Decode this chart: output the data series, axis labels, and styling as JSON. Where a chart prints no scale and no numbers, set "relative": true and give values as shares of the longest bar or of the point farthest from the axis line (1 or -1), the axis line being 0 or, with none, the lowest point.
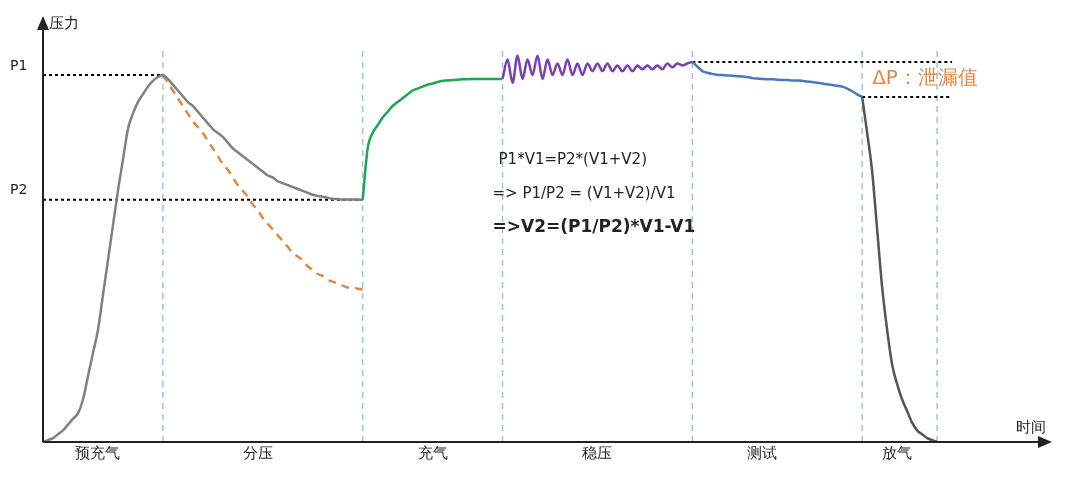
{
  "chart_data": {
    "type": "line",
    "relative": true,
    "ylabel": "压力",
    "xlabel": "时间",
    "categories": [
      null,
      null,
      null,
      null,
      null,
      null,
      null,
      null,
      null,
      null,
      null,
      "预充气",
      null,
      null,
      null,
      null,
      null,
      null,
      null,
      null,
      null,
      null,
      null,
      null,
      null,
      null,
      null,
      null,
      null,
      null,
      null,
      null,
      null,
      null,
      null,
      null,
      null,
      null,
      null,
      null,
      null,
      null,
      null,
      "分压",
      null,
      null,
      null,
      null,
      null,
      null,
      null,
      null,
      null,
      null,
      null,
      null,
      null,
      null,
      null,
      null,
      null,
      null,
      null,
      null,
      null,
      null,
      null,
      null,
      null,
      null,
      null,
      null,
      null,
      null,
      null,
      null,
      null,
      null,
      "充气",
      null,
      null,
      null,
      null,
      null,
      null,
      null,
      null,
      null,
      null,
      null,
      null,
      null,
      null,
      null,
      null,
      null,
      null,
      null,
      null,
      null,
      null,
      null,
      null,
      null,
      null,
      null,
      null,
      null,
      null,
      null,
      null,
      "稳压",
      null,
      null,
      null,
      null,
      null,
      null,
      null,
      null,
      null,
      null,
      null,
      null,
      null,
      null,
      null,
      null,
      null,
      null,
      null,
      null,
      null,
      null,
      null,
      null,
      null,
      null,
      null,
      null,
      null,
      null,
      null,
      null,
      "测试",
      null,
      null,
      null,
      null,
      null,
      null,
      null,
      null,
      null,
      null,
      null,
      null,
      null,
      null,
      null,
      null,
      null,
      null,
      null,
      null,
      null,
      null,
      null,
      null,
      null,
      null,
      "放气",
      null,
      null,
      null,
      null,
      null,
      null,
      null,
      null,
      null,
      null,
      null,
      null,
      null,
      null,
      null,
      null,
      null,
      null,
      null,
      null,
      null,
      null,
      null,
      null,
      null,
      null,
      null,
      null,
      null
    ],
    "grid": false,
    "legend": false,
    "marker": "none",
    "line_style": "solid",
    "series": [
      {
        "color": "#808080",
        "values": [
          0,
          0.005,
          0.01,
          0.02,
          0.03,
          0.045,
          0.06,
          0.074,
          0.11,
          0.17,
          0.23,
          0.29,
          0.38,
          0.47,
          0.56,
          0.65,
          0.73,
          0.81,
          0.85,
          0.88,
          0.9,
          0.92,
          0.935,
          0.945,
          0.95,
          0.94,
          0.925,
          0.91,
          0.895,
          0.88,
          0.87,
          0.855,
          0.84,
          0.825,
          0.81,
          0.8,
          0.79,
          0.775,
          0.76,
          0.75,
          0.74,
          0.73,
          0.72,
          0.71,
          0.7,
          0.69,
          0.685,
          0.675,
          0.67,
          0.665,
          0.66,
          0.655,
          0.65,
          0.645,
          0.64,
          0.637,
          0.635,
          0.632,
          0.63,
          0.629,
          0.628,
          0.628,
          0.628,
          0.628,
          0.627,
          null,
          null,
          null,
          null,
          null,
          null,
          null,
          null,
          null,
          null,
          null,
          null,
          null,
          null,
          null,
          null,
          null,
          null,
          null,
          null,
          null,
          null,
          null,
          null,
          null,
          null,
          null,
          null,
          null,
          null,
          null,
          null,
          null,
          null,
          null,
          null,
          null,
          null,
          null,
          null,
          null,
          null,
          null,
          null,
          null,
          null,
          null,
          null,
          null,
          null,
          null,
          null,
          null,
          null,
          null,
          null,
          null,
          null,
          null,
          null,
          null,
          null,
          null,
          null,
          null,
          null,
          null,
          null,
          null,
          null,
          null,
          null,
          null,
          null,
          null,
          null,
          null,
          null,
          null,
          null,
          null,
          null,
          null,
          null,
          null,
          null,
          null,
          null,
          null,
          null,
          null,
          null,
          null,
          null,
          null,
          null,
          null,
          null,
          null,
          null,
          null,
          null,
          null,
          null,
          null,
          null,
          null,
          null,
          null,
          null,
          null,
          null,
          null,
          null,
          null,
          null,
          null,
          null,
          null,
          null,
          null,
          null,
          null,
          null,
          null,
          null,
          null,
          null,
          null,
          null,
          null,
          null,
          null,
          null,
          null,
          null
        ]
      },
      {
        "color": "#e08a45",
        "line_style": "dashed",
        "values": [
          null,
          null,
          null,
          null,
          null,
          null,
          null,
          null,
          null,
          null,
          null,
          null,
          null,
          null,
          null,
          null,
          null,
          null,
          null,
          null,
          null,
          null,
          null,
          null,
          0.95,
          0.93,
          0.91,
          0.89,
          0.87,
          0.85,
          0.83,
          0.815,
          0.8,
          0.78,
          0.76,
          0.74,
          0.72,
          0.705,
          0.685,
          0.665,
          0.65,
          0.635,
          0.615,
          0.6,
          0.58,
          0.565,
          0.55,
          0.535,
          0.52,
          0.505,
          0.49,
          0.48,
          0.47,
          0.455,
          0.445,
          0.435,
          0.43,
          0.42,
          0.415,
          0.41,
          0.405,
          0.4,
          0.4,
          0.397,
          0.395,
          null,
          null,
          null,
          null,
          null,
          null,
          null,
          null,
          null,
          null,
          null,
          null,
          null,
          null,
          null,
          null,
          null,
          null,
          null,
          null,
          null,
          null,
          null,
          null,
          null,
          null,
          null,
          null,
          null,
          null,
          null,
          null,
          null,
          null,
          null,
          null,
          null,
          null,
          null,
          null,
          null,
          null,
          null,
          null,
          null,
          null,
          null,
          null,
          null,
          null,
          null,
          null,
          null,
          null,
          null,
          null,
          null,
          null,
          null,
          null,
          null,
          null,
          null,
          null,
          null,
          null,
          null,
          null,
          null,
          null,
          null,
          null,
          null,
          null,
          null,
          null,
          null,
          null,
          null,
          null,
          null,
          null,
          null,
          null,
          null,
          null,
          null,
          null,
          null,
          null,
          null,
          null,
          null,
          null,
          null,
          null,
          null,
          null,
          null,
          null,
          null,
          null,
          null,
          null,
          null,
          null,
          null,
          null,
          null,
          null,
          null,
          null,
          null,
          null,
          null,
          null,
          null,
          null,
          null,
          null,
          null,
          null,
          null,
          null,
          null,
          null,
          null,
          null,
          null,
          null,
          null,
          null,
          null,
          null,
          null,
          null
        ]
      },
      {
        "color": "#1ea650",
        "values": [
          null,
          null,
          null,
          null,
          null,
          null,
          null,
          null,
          null,
          null,
          null,
          null,
          null,
          null,
          null,
          null,
          null,
          null,
          null,
          null,
          null,
          null,
          null,
          null,
          null,
          null,
          null,
          null,
          null,
          null,
          null,
          null,
          null,
          null,
          null,
          null,
          null,
          null,
          null,
          null,
          null,
          null,
          null,
          null,
          null,
          null,
          null,
          null,
          null,
          null,
          null,
          null,
          null,
          null,
          null,
          null,
          null,
          null,
          null,
          null,
          null,
          null,
          null,
          null,
          0.627,
          0.76,
          0.8,
          0.82,
          0.84,
          0.855,
          0.87,
          0.88,
          0.89,
          0.9,
          0.91,
          0.915,
          0.92,
          0.925,
          0.928,
          0.932,
          0.935,
          0.936,
          0.937,
          0.938,
          0.939,
          0.939,
          0.94,
          0.94,
          0.94,
          0.94,
          0.94,
          0.94,
          0.94,
          null,
          null,
          null,
          null,
          null,
          null,
          null,
          null,
          null,
          null,
          null,
          null,
          null,
          null,
          null,
          null,
          null,
          null,
          null,
          null,
          null,
          null,
          null,
          null,
          null,
          null,
          null,
          null,
          null,
          null,
          null,
          null,
          null,
          null,
          null,
          null,
          null,
          null,
          null,
          null,
          null,
          null,
          null,
          null,
          null,
          null,
          null,
          null,
          null,
          null,
          null,
          null,
          null,
          null,
          null,
          null,
          null,
          null,
          null,
          null,
          null,
          null,
          null,
          null,
          null,
          null,
          null,
          null,
          null,
          null,
          null,
          null,
          null,
          null,
          null,
          null,
          null,
          null,
          null,
          null,
          null,
          null,
          null,
          null,
          null,
          null,
          null,
          null,
          null,
          null,
          null,
          null,
          null,
          null,
          null,
          null,
          null,
          null,
          null,
          null,
          null,
          null,
          null,
          null,
          null,
          null,
          null,
          null
        ]
      },
      {
        "color": "#7a3fb0",
        "values": [
          null,
          null,
          null,
          null,
          null,
          null,
          null,
          null,
          null,
          null,
          null,
          null,
          null,
          null,
          null,
          null,
          null,
          null,
          null,
          null,
          null,
          null,
          null,
          null,
          null,
          null,
          null,
          null,
          null,
          null,
          null,
          null,
          null,
          null,
          null,
          null,
          null,
          null,
          null,
          null,
          null,
          null,
          null,
          null,
          null,
          null,
          null,
          null,
          null,
          null,
          null,
          null,
          null,
          null,
          null,
          null,
          null,
          null,
          null,
          null,
          null,
          null,
          null,
          null,
          null,
          null,
          null,
          null,
          null,
          null,
          null,
          null,
          null,
          null,
          null,
          null,
          null,
          null,
          null,
          null,
          null,
          null,
          null,
          null,
          null,
          null,
          null,
          null,
          null,
          null,
          null,
          null,
          0.94,
          0.99,
          0.93,
          1.0,
          0.94,
          0.99,
          0.95,
          1.0,
          0.94,
          0.99,
          0.95,
          0.98,
          0.95,
          0.99,
          0.95,
          0.98,
          0.95,
          0.98,
          0.96,
          0.98,
          0.96,
          0.98,
          0.96,
          0.975,
          0.96,
          0.975,
          0.96,
          0.975,
          0.965,
          0.975,
          0.965,
          0.975,
          0.965,
          0.98,
          0.97,
          0.98,
          0.975,
          0.98,
          0.984,
          null,
          null,
          null,
          null,
          null,
          null,
          null,
          null,
          null,
          null,
          null,
          null,
          null,
          null,
          null,
          null,
          null,
          null,
          null,
          null,
          null,
          null,
          null,
          null,
          null,
          null,
          null,
          null,
          null,
          null,
          null,
          null,
          null,
          null,
          null,
          null,
          null,
          null,
          null,
          null,
          null,
          null,
          null,
          null,
          null,
          null,
          null,
          null,
          null,
          null,
          null,
          null,
          null,
          null,
          null,
          null,
          null,
          null,
          null,
          null,
          null,
          null,
          null,
          null,
          null,
          null,
          null,
          null,
          null,
          null
        ]
      },
      {
        "color": "#4a78c0",
        "values": [
          null,
          null,
          null,
          null,
          null,
          null,
          null,
          null,
          null,
          null,
          null,
          null,
          null,
          null,
          null,
          null,
          null,
          null,
          null,
          null,
          null,
          null,
          null,
          null,
          null,
          null,
          null,
          null,
          null,
          null,
          null,
          null,
          null,
          null,
          null,
          null,
          null,
          null,
          null,
          null,
          null,
          null,
          null,
          null,
          null,
          null,
          null,
          null,
          null,
          null,
          null,
          null,
          null,
          null,
          null,
          null,
          null,
          null,
          null,
          null,
          null,
          null,
          null,
          null,
          null,
          null,
          null,
          null,
          null,
          null,
          null,
          null,
          null,
          null,
          null,
          null,
          null,
          null,
          null,
          null,
          null,
          null,
          null,
          null,
          null,
          null,
          null,
          null,
          null,
          null,
          null,
          null,
          null,
          null,
          null,
          null,
          null,
          null,
          null,
          null,
          null,
          null,
          null,
          null,
          null,
          null,
          null,
          null,
          null,
          null,
          null,
          null,
          null,
          null,
          null,
          null,
          null,
          null,
          null,
          null,
          null,
          null,
          null,
          null,
          null,
          null,
          null,
          null,
          null,
          null,
          0.984,
          0.972,
          0.96,
          0.956,
          0.953,
          0.951,
          0.95,
          0.949,
          0.948,
          0.947,
          0.946,
          0.945,
          0.942,
          0.941,
          0.94,
          0.939,
          0.939,
          0.938,
          0.937,
          0.937,
          0.936,
          0.936,
          0.935,
          0.933,
          0.932,
          0.93,
          0.928,
          0.926,
          0.924,
          0.922,
          0.92,
          0.915,
          0.908,
          0.9,
          0.893,
          null,
          null,
          null,
          null,
          null,
          null,
          null,
          null,
          null,
          null,
          null,
          null,
          null,
          null,
          null,
          null,
          null,
          null,
          null,
          null,
          null,
          null,
          null,
          null,
          null,
          null,
          null,
          null,
          null,
          null,
          null,
          null,
          null,
          null,
          null,
          null
        ]
      },
      {
        "color": "#555555",
        "values": [
          null,
          null,
          null,
          null,
          null,
          null,
          null,
          null,
          null,
          null,
          null,
          null,
          null,
          null,
          null,
          null,
          null,
          null,
          null,
          null,
          null,
          null,
          null,
          null,
          null,
          null,
          null,
          null,
          null,
          null,
          null,
          null,
          null,
          null,
          null,
          null,
          null,
          null,
          null,
          null,
          null,
          null,
          null,
          null,
          null,
          null,
          null,
          null,
          null,
          null,
          null,
          null,
          null,
          null,
          null,
          null,
          null,
          null,
          null,
          null,
          null,
          null,
          null,
          null,
          null,
          null,
          null,
          null,
          null,
          null,
          null,
          null,
          null,
          null,
          null,
          null,
          null,
          null,
          null,
          null,
          null,
          null,
          null,
          null,
          null,
          null,
          null,
          null,
          null,
          null,
          null,
          null,
          null,
          null,
          null,
          null,
          null,
          null,
          null,
          null,
          null,
          null,
          null,
          null,
          null,
          null,
          null,
          null,
          null,
          null,
          null,
          null,
          null,
          null,
          null,
          null,
          null,
          null,
          null,
          null,
          null,
          null,
          null,
          null,
          null,
          null,
          null,
          null,
          null,
          null,
          null,
          null,
          null,
          null,
          null,
          null,
          null,
          null,
          null,
          null,
          null,
          null,
          null,
          null,
          null,
          null,
          null,
          null,
          null,
          null,
          null,
          null,
          null,
          null,
          null,
          null,
          null,
          null,
          null,
          null,
          null,
          null,
          null,
          null,
          0.893,
          0.8,
          0.7,
          0.55,
          0.4,
          0.29,
          0.2,
          0.15,
          0.11,
          0.08,
          0.05,
          0.03,
          0.02,
          0.01,
          0.005,
          0,
          null,
          null,
          null,
          null,
          null,
          null,
          null,
          null,
          null,
          null,
          null,
          null,
          null,
          null,
          null,
          null,
          null,
          null,
          null,
          null,
          null
        ]
      }
    ],
    "ref_lines": [
      {
        "axis": "y",
        "value": 0.95,
        "label": "P1",
        "line_style": "dotted",
        "color": "#000000"
      },
      {
        "axis": "y",
        "value": 0.627,
        "label": "P2",
        "line_style": "dotted",
        "color": "#000000"
      },
      {
        "axis": "y",
        "value": 0.984,
        "line_style": "dotted",
        "color": "#000000"
      },
      {
        "axis": "y",
        "value": 0.893,
        "line_style": "dotted",
        "color": "#000000"
      }
    ],
    "annotations": [
      "P1*V1=P2*(V1+V2)",
      "=> P1/P2 = (V1+V2)/V1",
      "=>V2=(P1/P2)*V1-V1",
      "ΔP：泄漏值"
    ]
  }
}
